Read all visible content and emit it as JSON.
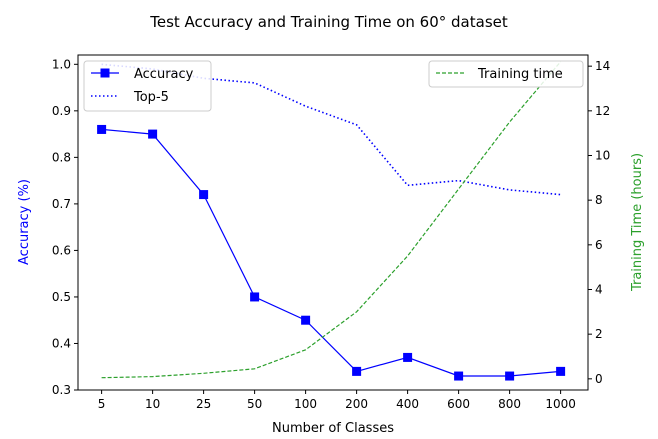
{
  "chart_data": {
    "type": "line",
    "title": "Test Accuracy and Training Time on 60° dataset",
    "xlabel": "Number of Classes",
    "ylabel_left": "Accuracy (%)",
    "ylabel_right": "Training Time (hours)",
    "categories": [
      "5",
      "10",
      "25",
      "50",
      "100",
      "200",
      "400",
      "600",
      "800",
      "1000"
    ],
    "ylim_left": [
      0.3,
      1.02
    ],
    "yticks_left": [
      "0.3",
      "0.4",
      "0.5",
      "0.6",
      "0.7",
      "0.8",
      "0.9",
      "1.0"
    ],
    "ylim_right": [
      -0.5,
      14.5
    ],
    "yticks_right": [
      "0",
      "2",
      "4",
      "6",
      "8",
      "10",
      "12",
      "14"
    ],
    "series": [
      {
        "name": "Accuracy",
        "axis": "left",
        "style": "solid-square",
        "color": "#0000ff",
        "values": [
          0.86,
          0.85,
          0.72,
          0.5,
          0.45,
          0.34,
          0.37,
          0.33,
          0.33,
          0.34
        ]
      },
      {
        "name": "Top-5",
        "axis": "left",
        "style": "dotted",
        "color": "#0000ff",
        "values": [
          1.0,
          0.99,
          0.97,
          0.96,
          0.91,
          0.87,
          0.74,
          0.75,
          0.73,
          0.72
        ]
      },
      {
        "name": "Training time",
        "axis": "right",
        "style": "dashed",
        "color": "#2ca02c",
        "values": [
          0.05,
          0.1,
          0.25,
          0.45,
          1.3,
          3.0,
          5.5,
          8.5,
          11.5,
          14.2
        ]
      }
    ],
    "legend_left": [
      "Accuracy",
      "Top-5"
    ],
    "legend_right": [
      "Training time"
    ],
    "grid": false
  }
}
